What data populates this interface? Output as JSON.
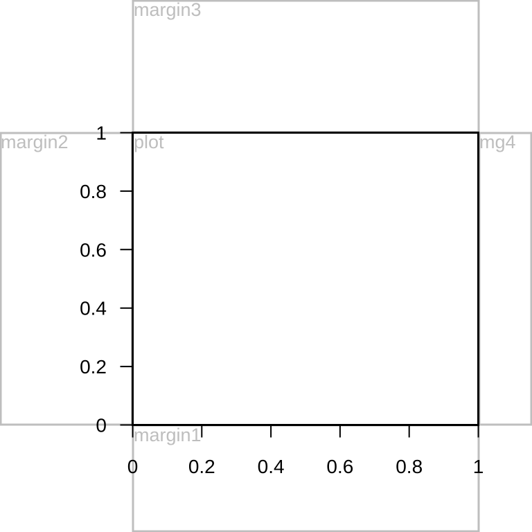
{
  "regions": {
    "margin3": "margin3",
    "margin2": "margin2",
    "plot": "plot",
    "margin4": "mg4",
    "margin1": "margin1"
  },
  "axes": {
    "x": {
      "ticks": [
        0,
        0.2,
        0.4,
        0.6,
        0.8,
        1
      ],
      "labels": [
        "0",
        "0.2",
        "0.4",
        "0.6",
        "0.8",
        "1"
      ],
      "range": [
        0,
        1
      ]
    },
    "y": {
      "ticks": [
        0,
        0.2,
        0.4,
        0.6,
        0.8,
        1
      ],
      "labels": [
        "0",
        "0.2",
        "0.4",
        "0.6",
        "0.8",
        "1"
      ],
      "range": [
        0,
        1
      ]
    }
  },
  "colors": {
    "region_outline": "#bebebe",
    "region_text": "#bebebe",
    "axis": "#000000",
    "background": "#ffffff"
  }
}
